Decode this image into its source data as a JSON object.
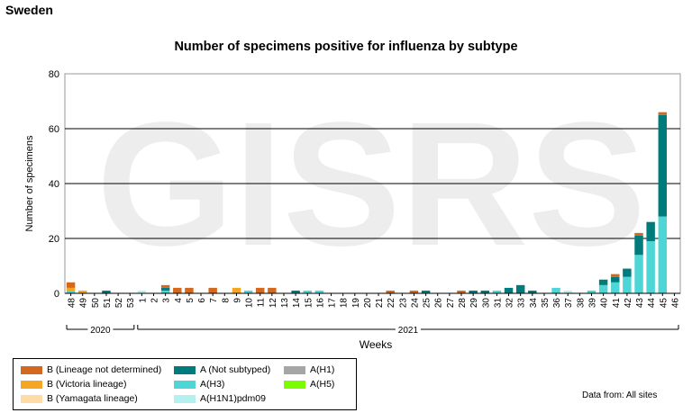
{
  "header": {
    "country": "Sweden"
  },
  "source": {
    "text": "Data from: All sites"
  },
  "legend_items": [
    {
      "key": "b_lineage_nd",
      "label": "B (Lineage not determined)",
      "color": "#D2691E"
    },
    {
      "key": "b_victoria",
      "label": "B (Victoria lineage)",
      "color": "#F5A623"
    },
    {
      "key": "b_yamagata",
      "label": "B (Yamagata lineage)",
      "color": "#FFDBA6"
    },
    {
      "key": "a_not_subtyped",
      "label": "A (Not subtyped)",
      "color": "#007B7B"
    },
    {
      "key": "a_h3",
      "label": "A(H3)",
      "color": "#4ED6D6"
    },
    {
      "key": "a_h1n1pdm09",
      "label": "A(H1N1)pdm09",
      "color": "#B3F0EE"
    },
    {
      "key": "a_h1",
      "label": "A(H1)",
      "color": "#A6A6A6"
    },
    {
      "key": "a_h5",
      "label": "A(H5)",
      "color": "#7CFC00"
    }
  ],
  "chart_data": {
    "type": "bar",
    "stacked": true,
    "title": "Number of specimens positive for influenza by subtype",
    "xlabel": "Weeks",
    "ylabel": "Number of specimens",
    "ylim": [
      0,
      80
    ],
    "yticks": [
      0,
      20,
      40,
      60,
      80
    ],
    "grid": true,
    "watermark": "GISRS",
    "year_groups": [
      {
        "label": "2020",
        "first_week": "48",
        "last_week": "53"
      },
      {
        "label": "2021",
        "first_week": "1",
        "last_week": "46"
      }
    ],
    "categories": [
      "48",
      "49",
      "50",
      "51",
      "52",
      "53",
      "1",
      "2",
      "3",
      "4",
      "5",
      "6",
      "7",
      "8",
      "9",
      "10",
      "11",
      "12",
      "13",
      "14",
      "15",
      "16",
      "17",
      "18",
      "19",
      "20",
      "21",
      "22",
      "23",
      "24",
      "25",
      "26",
      "27",
      "28",
      "29",
      "30",
      "31",
      "32",
      "33",
      "34",
      "35",
      "36",
      "37",
      "38",
      "39",
      "40",
      "41",
      "42",
      "43",
      "44",
      "45",
      "46"
    ],
    "series": [
      {
        "name": "A(H1N1)pdm09",
        "color": "#B3F0EE",
        "values": [
          0,
          0,
          0,
          0,
          0,
          0,
          1,
          0,
          0,
          0,
          0,
          0,
          0,
          0,
          0,
          0,
          0,
          0,
          0,
          0,
          0,
          0,
          0,
          0,
          0,
          0,
          0,
          0,
          0,
          0,
          0,
          0,
          0,
          0,
          0,
          0,
          0,
          0,
          0,
          0,
          0,
          0,
          1,
          0,
          0,
          0,
          0,
          0,
          0,
          0,
          0,
          0
        ]
      },
      {
        "name": "A(H3)",
        "color": "#4ED6D6",
        "values": [
          1,
          0,
          0,
          0,
          0,
          0,
          0,
          0,
          1,
          0,
          0,
          0,
          0,
          0,
          0,
          1,
          0,
          0,
          0,
          0,
          1,
          1,
          0,
          0,
          0,
          0,
          0,
          0,
          0,
          0,
          0,
          0,
          0,
          0,
          0,
          0,
          1,
          0,
          0,
          0,
          0,
          2,
          0,
          0,
          1,
          3,
          4,
          6,
          14,
          19,
          28,
          0
        ]
      },
      {
        "name": "A (Not subtyped)",
        "color": "#007B7B",
        "values": [
          0,
          0,
          0,
          1,
          0,
          0,
          0,
          0,
          1,
          0,
          0,
          0,
          0,
          0,
          0,
          0,
          0,
          0,
          0,
          1,
          0,
          0,
          0,
          0,
          0,
          0,
          0,
          0,
          0,
          0,
          1,
          0,
          0,
          0,
          1,
          1,
          0,
          2,
          3,
          1,
          0,
          0,
          0,
          0,
          0,
          2,
          2,
          3,
          7,
          7,
          37,
          0
        ]
      },
      {
        "name": "B (Victoria lineage)",
        "color": "#F5A623",
        "values": [
          1,
          1,
          0,
          0,
          0,
          0,
          0,
          0,
          0,
          0,
          0,
          0,
          0,
          0,
          2,
          0,
          0,
          0,
          0,
          0,
          0,
          0,
          0,
          0,
          0,
          0,
          0,
          0,
          0,
          0,
          0,
          0,
          0,
          0,
          0,
          0,
          0,
          0,
          0,
          0,
          0,
          0,
          0,
          0,
          0,
          0,
          0,
          0,
          0,
          0,
          0,
          0
        ]
      },
      {
        "name": "B (Lineage not determined)",
        "color": "#D2691E",
        "values": [
          2,
          0,
          0,
          0,
          0,
          0,
          0,
          0,
          1,
          2,
          2,
          0,
          2,
          0,
          0,
          0,
          2,
          2,
          0,
          0,
          0,
          0,
          0,
          0,
          0,
          0,
          0,
          1,
          0,
          1,
          0,
          0,
          0,
          1,
          0,
          0,
          0,
          0,
          0,
          0,
          0,
          0,
          0,
          0,
          0,
          0,
          1,
          0,
          1,
          0,
          1,
          0
        ]
      }
    ]
  }
}
